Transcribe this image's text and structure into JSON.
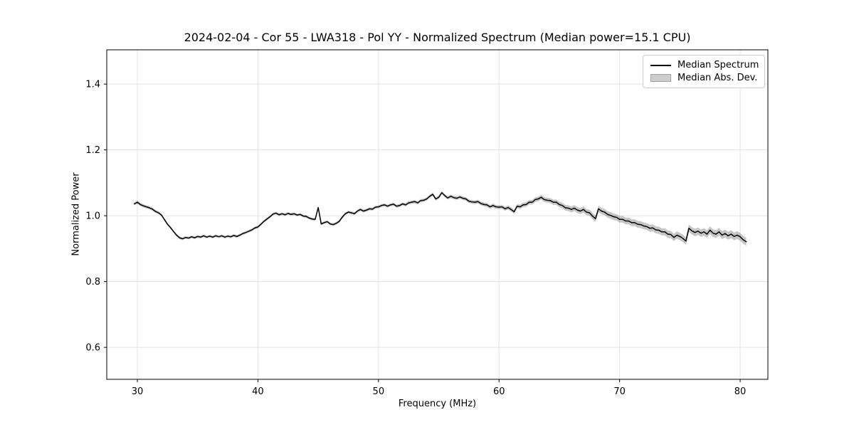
{
  "title": "2024-02-04 - Cor 55 - LWA318 - Pol YY - Normalized Spectrum (Median power=15.1 CPU)",
  "axes": {
    "xlabel": "Frequency (MHz)",
    "ylabel": "Normalized Power",
    "xtick_labels": [
      "30",
      "40",
      "50",
      "60",
      "70",
      "80"
    ],
    "xticks": [
      30,
      40,
      50,
      60,
      70,
      80
    ],
    "ytick_labels": [
      "0.6",
      "0.8",
      "1.0",
      "1.2",
      "1.4"
    ],
    "yticks": [
      0.6,
      0.8,
      1.0,
      1.2,
      1.4
    ],
    "grid": true
  },
  "legend": {
    "position": "upper right",
    "entries": [
      {
        "label": "Median Spectrum",
        "type": "line",
        "color": "#000000"
      },
      {
        "label": "Median Abs. Dev.",
        "type": "patch",
        "color": "#cdcdcd",
        "edge": "#a3a3a3"
      }
    ]
  },
  "colors": {
    "line": "#000000",
    "band": "rgba(128,128,128,0.45)",
    "grid": "#e4e4e4",
    "spine": "#000000",
    "background": "#ffffff"
  },
  "chart_data": {
    "type": "line",
    "title": "2024-02-04 - Cor 55 - LWA318 - Pol YY - Normalized Spectrum (Median power=15.1 CPU)",
    "xlabel": "Frequency (MHz)",
    "ylabel": "Normalized Power",
    "xlim": [
      27.46,
      82.3
    ],
    "ylim": [
      0.503,
      1.504
    ],
    "grid": true,
    "legend_position": "upper right",
    "series": [
      {
        "name": "Median Spectrum",
        "x_start": 29.75,
        "x_step": 0.25,
        "y": [
          1.036,
          1.041,
          1.034,
          1.03,
          1.027,
          1.024,
          1.02,
          1.013,
          1.009,
          1.002,
          0.988,
          0.974,
          0.964,
          0.952,
          0.941,
          0.933,
          0.93,
          0.934,
          0.932,
          0.936,
          0.933,
          0.937,
          0.935,
          0.939,
          0.935,
          0.938,
          0.935,
          0.939,
          0.936,
          0.939,
          0.935,
          0.938,
          0.936,
          0.94,
          0.937,
          0.941,
          0.946,
          0.949,
          0.953,
          0.957,
          0.963,
          0.966,
          0.974,
          0.983,
          0.99,
          0.997,
          1.005,
          1.008,
          1.003,
          1.006,
          1.003,
          1.007,
          1.004,
          1.006,
          1.002,
          1.004,
          0.999,
          0.998,
          0.993,
          0.99,
          0.989,
          1.025,
          0.975,
          0.979,
          0.982,
          0.975,
          0.973,
          0.977,
          0.983,
          0.996,
          1.006,
          1.011,
          1.009,
          1.006,
          1.014,
          1.019,
          1.014,
          1.017,
          1.021,
          1.02,
          1.026,
          1.027,
          1.031,
          1.033,
          1.029,
          1.033,
          1.035,
          1.029,
          1.031,
          1.036,
          1.033,
          1.039,
          1.041,
          1.043,
          1.039,
          1.046,
          1.047,
          1.051,
          1.059,
          1.065,
          1.051,
          1.056,
          1.07,
          1.061,
          1.054,
          1.059,
          1.055,
          1.053,
          1.057,
          1.053,
          1.051,
          1.044,
          1.042,
          1.041,
          1.043,
          1.037,
          1.034,
          1.033,
          1.027,
          1.031,
          1.027,
          1.026,
          1.027,
          1.021,
          1.025,
          1.019,
          1.012,
          1.029,
          1.027,
          1.033,
          1.034,
          1.041,
          1.041,
          1.049,
          1.051,
          1.056,
          1.049,
          1.047,
          1.046,
          1.041,
          1.041,
          1.034,
          1.031,
          1.024,
          1.023,
          1.019,
          1.023,
          1.017,
          1.014,
          1.019,
          1.011,
          1.009,
          0.999,
          0.991,
          1.021,
          1.014,
          1.011,
          1.004,
          1.001,
          0.997,
          0.995,
          0.989,
          0.989,
          0.984,
          0.984,
          0.979,
          0.979,
          0.974,
          0.973,
          0.969,
          0.967,
          0.962,
          0.963,
          0.957,
          0.956,
          0.951,
          0.951,
          0.944,
          0.943,
          0.934,
          0.941,
          0.937,
          0.931,
          0.923,
          0.962,
          0.954,
          0.949,
          0.953,
          0.947,
          0.951,
          0.944,
          0.956,
          0.947,
          0.944,
          0.951,
          0.941,
          0.946,
          0.939,
          0.944,
          0.937,
          0.941,
          0.936,
          0.927,
          0.921
        ]
      },
      {
        "name": "Median Abs. Dev.",
        "band_halfwidth_breakpoints": [
          {
            "f": 29.75,
            "w": 0.005
          },
          {
            "f": 33.0,
            "w": 0.004
          },
          {
            "f": 44.0,
            "w": 0.004
          },
          {
            "f": 55.0,
            "w": 0.005
          },
          {
            "f": 60.0,
            "w": 0.006
          },
          {
            "f": 63.0,
            "w": 0.007
          },
          {
            "f": 66.0,
            "w": 0.009
          },
          {
            "f": 70.0,
            "w": 0.01
          },
          {
            "f": 74.0,
            "w": 0.011
          },
          {
            "f": 80.5,
            "w": 0.012
          }
        ]
      }
    ]
  }
}
